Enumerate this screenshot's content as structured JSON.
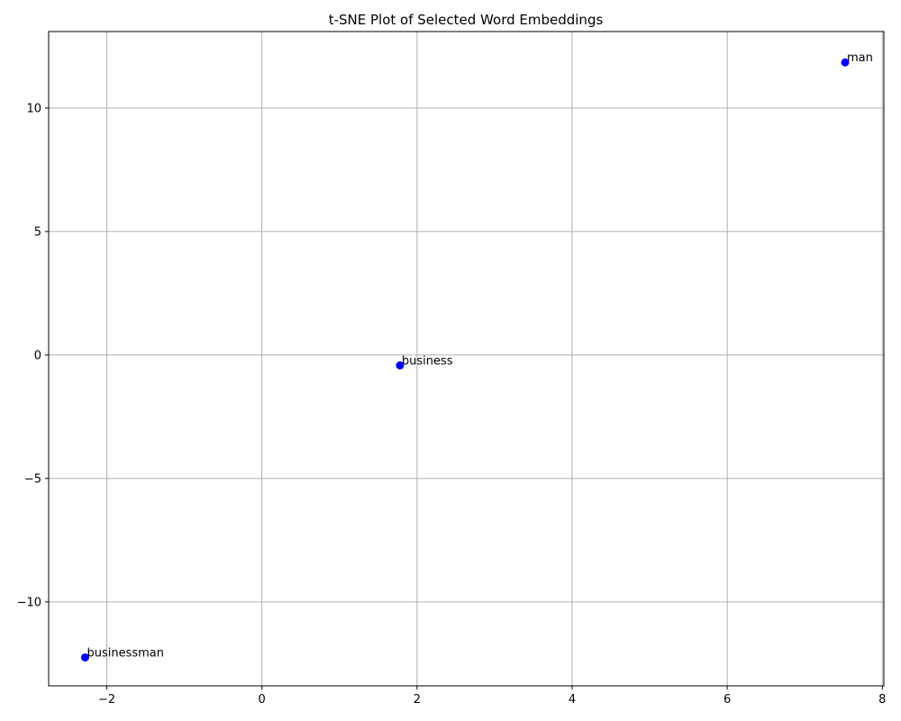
{
  "chart_data": {
    "type": "scatter",
    "title": "t-SNE Plot of Selected Word Embeddings",
    "xlabel": "",
    "ylabel": "",
    "xlim": [
      -2.75,
      8.02
    ],
    "ylim": [
      -13.4,
      13.1
    ],
    "x_ticks": [
      -2,
      0,
      2,
      4,
      6,
      8
    ],
    "y_ticks": [
      -10,
      -5,
      0,
      5,
      10
    ],
    "x_tick_labels": [
      "−2",
      "0",
      "2",
      "4",
      "6",
      "8"
    ],
    "y_tick_labels": [
      "−10",
      "−5",
      "0",
      "5",
      "10"
    ],
    "grid": true,
    "point_color": "#0000ff",
    "grid_color": "#b0b0b0",
    "points": [
      {
        "label": "man",
        "x": 7.52,
        "y": 11.85
      },
      {
        "label": "business",
        "x": 1.78,
        "y": -0.42
      },
      {
        "label": "businessman",
        "x": -2.28,
        "y": -12.25
      }
    ]
  }
}
